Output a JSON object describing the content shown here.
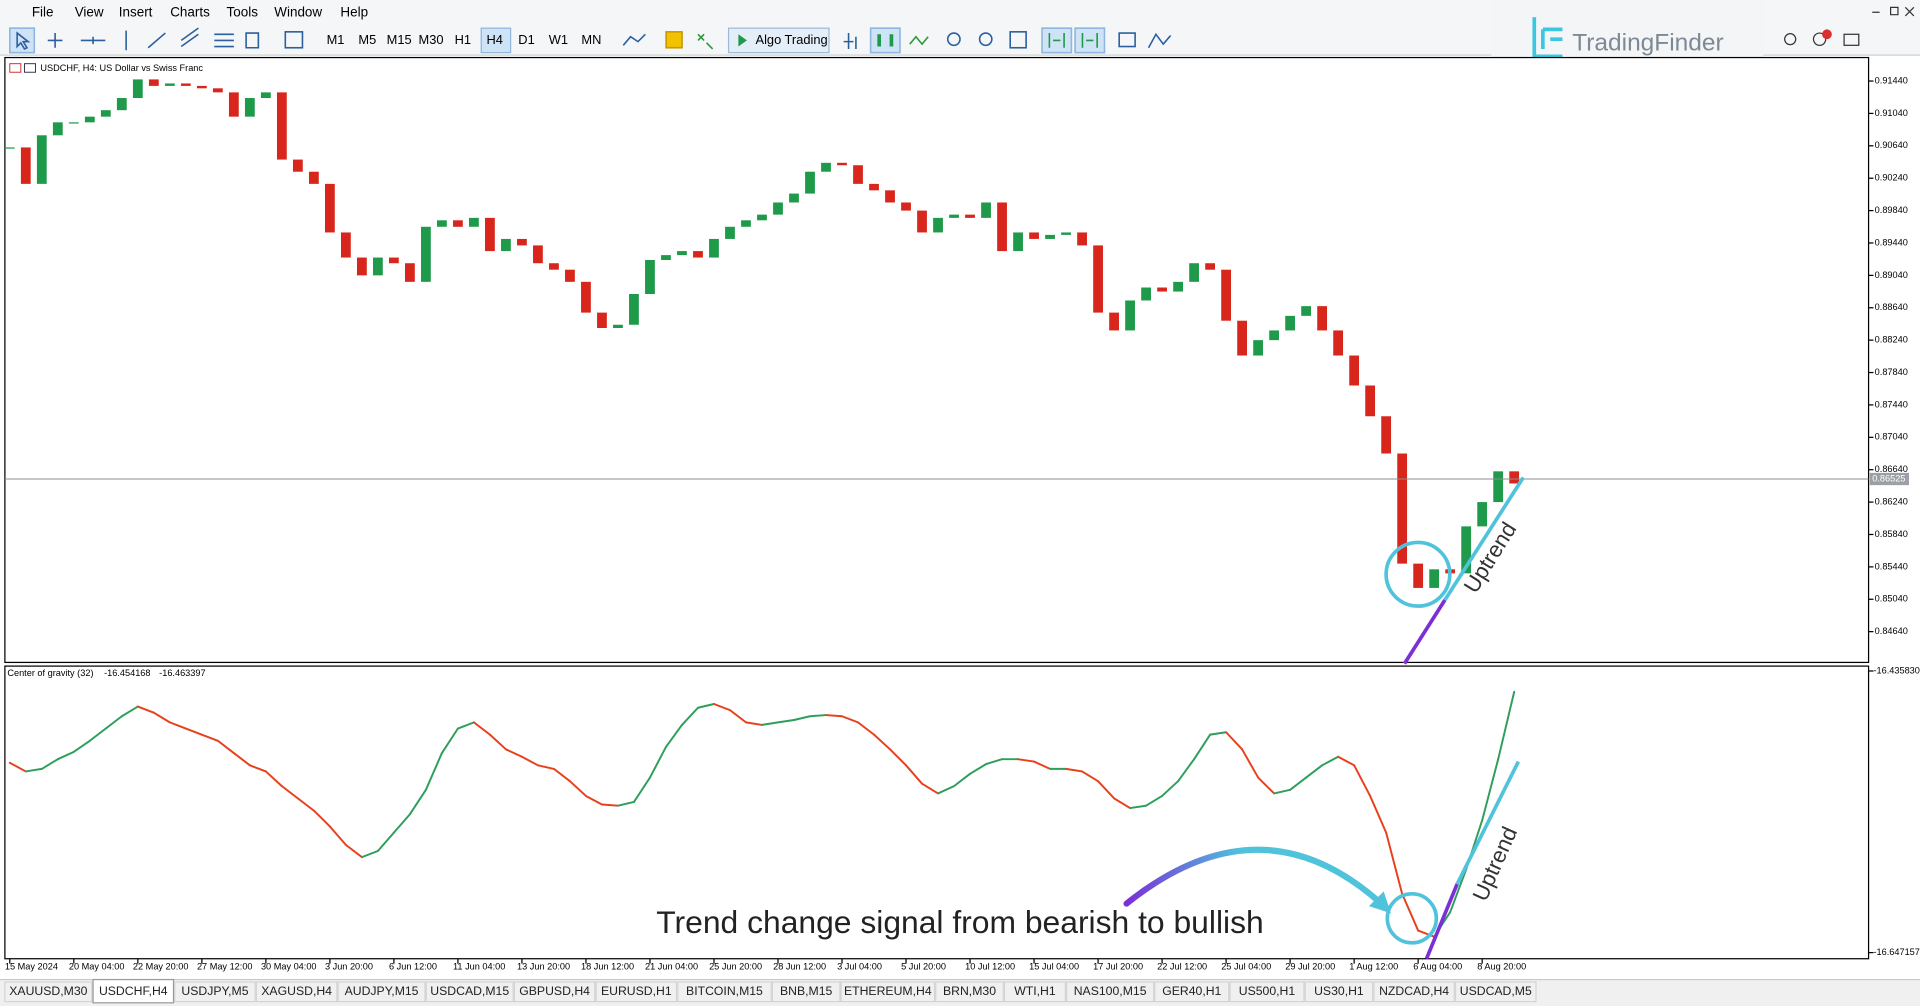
{
  "menu": [
    "File",
    "View",
    "Insert",
    "Charts",
    "Tools",
    "Window",
    "Help"
  ],
  "toolbar": {
    "timeframes": [
      "M1",
      "M5",
      "M15",
      "M30",
      "H1",
      "H4",
      "D1",
      "W1",
      "MN"
    ],
    "active_timeframe": "H4",
    "algo_trading": "Algo Trading"
  },
  "logo": "TradingFinder",
  "chart_data": [
    {
      "type": "candlestick",
      "title": "USDCHF, H4:  US Dollar vs Swiss Franc",
      "categories": [
        "15 May 2024",
        null,
        null,
        null,
        "20 May 04:00",
        null,
        null,
        null,
        "22 May 20:00",
        null,
        null,
        null,
        "27 May 12:00",
        null,
        null,
        null,
        "30 May 04:00",
        null,
        null,
        null,
        "3 Jun 20:00",
        null,
        null,
        null,
        "6 Jun 12:00",
        null,
        null,
        null,
        "11 Jun 04:00",
        null,
        null,
        null,
        "13 Jun 20:00",
        null,
        null,
        null,
        "18 Jun 12:00",
        null,
        null,
        null,
        "21 Jun 04:00",
        null,
        null,
        null,
        "25 Jun 20:00",
        null,
        null,
        null,
        "28 Jun 12:00",
        null,
        null,
        null,
        "3 Jul 04:00",
        null,
        null,
        null,
        "5 Jul 20:00",
        null,
        null,
        null,
        "10 Jul 12:00",
        null,
        null,
        null,
        "15 Jul 04:00",
        null,
        null,
        null,
        "17 Jul 20:00",
        null,
        null,
        null,
        "22 Jul 12:00",
        null,
        null,
        null,
        "25 Jul 04:00",
        null,
        null,
        null,
        "29 Jul 20:00",
        null,
        null,
        null,
        "1 Aug 12:00",
        null,
        null,
        null,
        "6 Aug 04:00",
        null,
        null,
        null,
        "8 Aug 20:00",
        null,
        null
      ],
      "values": [
        0.9062,
        0.9017,
        0.9077,
        0.9093,
        0.9093,
        0.91,
        0.9108,
        0.9123,
        0.9146,
        0.9138,
        0.9141,
        0.9138,
        0.9135,
        0.913,
        0.91,
        0.9123,
        0.913,
        0.9047,
        0.9032,
        0.9017,
        0.8957,
        0.8926,
        0.8904,
        0.8926,
        0.8919,
        0.8896,
        0.8964,
        0.8972,
        0.8964,
        0.8975,
        0.8934,
        0.8949,
        0.8941,
        0.8919,
        0.8911,
        0.8896,
        0.8858,
        0.8839,
        0.8843,
        0.8881,
        0.8923,
        0.8929,
        0.8934,
        0.8926,
        0.8949,
        0.8964,
        0.8972,
        0.8979,
        0.8994,
        0.9005,
        0.9032,
        0.9043,
        0.904,
        0.9017,
        0.9009,
        0.8994,
        0.8984,
        0.8957,
        0.8975,
        0.8979,
        0.8975,
        0.8994,
        0.8934,
        0.8957,
        0.8949,
        0.8954,
        0.8957,
        0.8941,
        0.8858,
        0.8836,
        0.8873,
        0.8889,
        0.8884,
        0.8896,
        0.8919,
        0.8911,
        0.8848,
        0.8805,
        0.8824,
        0.8836,
        0.8854,
        0.8866,
        0.8836,
        0.8805,
        0.8768,
        0.873,
        0.8684,
        0.8548,
        0.8518,
        0.8541,
        0.8536,
        0.8594,
        0.8624,
        0.8662,
        0.8647
      ],
      "up_color": "#1e9a4a",
      "down_color": "#d9261c",
      "ylim": [
        0.8426,
        0.9173
      ],
      "yticks": [
        {
          "value": 0.9144,
          "label": "0.91440"
        },
        {
          "value": 0.9104,
          "label": "0.91040"
        },
        {
          "value": 0.9064,
          "label": "0.90640"
        },
        {
          "value": 0.9024,
          "label": "0.90240"
        },
        {
          "value": 0.8984,
          "label": "0.89840"
        },
        {
          "value": 0.8944,
          "label": "0.89440"
        },
        {
          "value": 0.8904,
          "label": "0.89040"
        },
        {
          "value": 0.8864,
          "label": "0.88640"
        },
        {
          "value": 0.8824,
          "label": "0.88240"
        },
        {
          "value": 0.8784,
          "label": "0.87840"
        },
        {
          "value": 0.8744,
          "label": "0.87440"
        },
        {
          "value": 0.8704,
          "label": "0.87040"
        },
        {
          "value": 0.8664,
          "label": "0.86640"
        },
        {
          "value": 0.8624,
          "label": "0.86240"
        },
        {
          "value": 0.8584,
          "label": "0.85840"
        },
        {
          "value": 0.8544,
          "label": "0.85440"
        },
        {
          "value": 0.8504,
          "label": "0.85040"
        },
        {
          "value": 0.8464,
          "label": "0.84640"
        }
      ],
      "bid": 0.86525
    },
    {
      "type": "line",
      "title": "Center of gravity (32)",
      "current_values": [
        -16.454168,
        -16.463397
      ],
      "values": [
        -16.5047,
        -16.5112,
        -16.5093,
        -16.502,
        -16.4965,
        -16.4882,
        -16.479,
        -16.4698,
        -16.4625,
        -16.4671,
        -16.4744,
        -16.479,
        -16.4836,
        -16.4882,
        -16.4974,
        -16.5066,
        -16.5112,
        -16.5222,
        -16.5314,
        -16.5406,
        -16.5525,
        -16.5663,
        -16.5755,
        -16.5709,
        -16.5571,
        -16.5433,
        -16.525,
        -16.4974,
        -16.479,
        -16.4744,
        -16.4836,
        -16.4946,
        -16.5002,
        -16.5066,
        -16.5093,
        -16.5185,
        -16.5296,
        -16.536,
        -16.5369,
        -16.5341,
        -16.5158,
        -16.4928,
        -16.4763,
        -16.4634,
        -16.4606,
        -16.4652,
        -16.4744,
        -16.4763,
        -16.4744,
        -16.4726,
        -16.4698,
        -16.4689,
        -16.4698,
        -16.4744,
        -16.4836,
        -16.4946,
        -16.5066,
        -16.5204,
        -16.5277,
        -16.5222,
        -16.513,
        -16.5057,
        -16.502,
        -16.502,
        -16.5038,
        -16.5093,
        -16.5093,
        -16.5112,
        -16.5185,
        -16.5314,
        -16.5387,
        -16.5369,
        -16.5296,
        -16.5185,
        -16.502,
        -16.4836,
        -16.4818,
        -16.4946,
        -16.5158,
        -16.5277,
        -16.525,
        -16.5158,
        -16.5066,
        -16.5002,
        -16.5066,
        -16.5296,
        -16.5571,
        -16.6031,
        -16.6306,
        -16.6352,
        -16.6168,
        -16.5847,
        -16.5479,
        -16.502,
        -16.4515
      ],
      "up_color": "#2e9e5b",
      "down_color": "#e8401c",
      "ylim": [
        -16.647157,
        -16.43583
      ],
      "yticks": [
        {
          "value": -16.43583,
          "label": "-16.435830"
        },
        -16.647157
      ]
    }
  ],
  "annotations": {
    "uptrend_price": "Uptrend",
    "uptrend_indicator": "Uptrend",
    "signal": "Trend change signal from bearish to bullish"
  },
  "tabs": [
    "XAUUSD,M30",
    "USDCHF,H4",
    "USDJPY,M5",
    "XAGUSD,H4",
    "AUDJPY,M15",
    "USDCAD,M15",
    "GBPUSD,H4",
    "EURUSD,H1",
    "BITCOIN,M15",
    "BNB,M15",
    "ETHEREUM,H4",
    "BRN,M30",
    "WTI,H1",
    "NAS100,M15",
    "GER40,H1",
    "US500,H1",
    "US30,H1",
    "NZDCAD,H4",
    "USDCAD,M5"
  ],
  "active_tab": "USDCHF,H4"
}
